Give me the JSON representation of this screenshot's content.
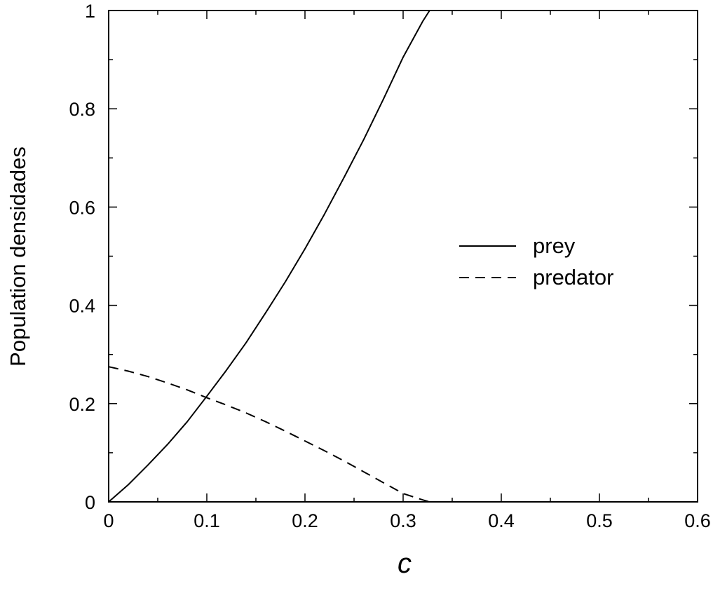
{
  "chart_data": {
    "type": "line",
    "xlabel": "c",
    "ylabel": "Population densidades",
    "xlim": [
      0,
      0.6
    ],
    "ylim": [
      0,
      1
    ],
    "xticks": [
      "0",
      "0.1",
      "0.2",
      "0.3",
      "0.4",
      "0.5",
      "0.6"
    ],
    "yticks": [
      "0",
      "0.2",
      "0.4",
      "0.6",
      "0.8",
      "1"
    ],
    "grid": false,
    "legend_position": "center-right",
    "series": [
      {
        "name": "prey",
        "style": "solid",
        "color": "#000000",
        "x": [
          0,
          0.02,
          0.04,
          0.06,
          0.08,
          0.1,
          0.12,
          0.14,
          0.16,
          0.18,
          0.2,
          0.22,
          0.24,
          0.26,
          0.28,
          0.3,
          0.32,
          0.327,
          0.35,
          0.4,
          0.45,
          0.5,
          0.55,
          0.6
        ],
        "y": [
          0,
          0.035,
          0.075,
          0.117,
          0.163,
          0.215,
          0.268,
          0.324,
          0.385,
          0.448,
          0.515,
          0.586,
          0.661,
          0.738,
          0.82,
          0.905,
          0.978,
          1.0,
          1.0,
          1.0,
          1.0,
          1.0,
          1.0,
          1.0
        ]
      },
      {
        "name": "predator",
        "style": "dashed",
        "color": "#000000",
        "x": [
          0,
          0.02,
          0.04,
          0.06,
          0.08,
          0.1,
          0.12,
          0.14,
          0.16,
          0.18,
          0.2,
          0.22,
          0.24,
          0.26,
          0.28,
          0.3,
          0.32,
          0.327,
          0.35,
          0.4,
          0.45,
          0.5,
          0.55,
          0.6
        ],
        "y": [
          0.275,
          0.266,
          0.255,
          0.242,
          0.228,
          0.212,
          0.197,
          0.181,
          0.163,
          0.144,
          0.124,
          0.104,
          0.083,
          0.061,
          0.039,
          0.017,
          0.004,
          0.0,
          0.0,
          0.0,
          0.0,
          0.0,
          0.0,
          0.0
        ]
      }
    ]
  }
}
